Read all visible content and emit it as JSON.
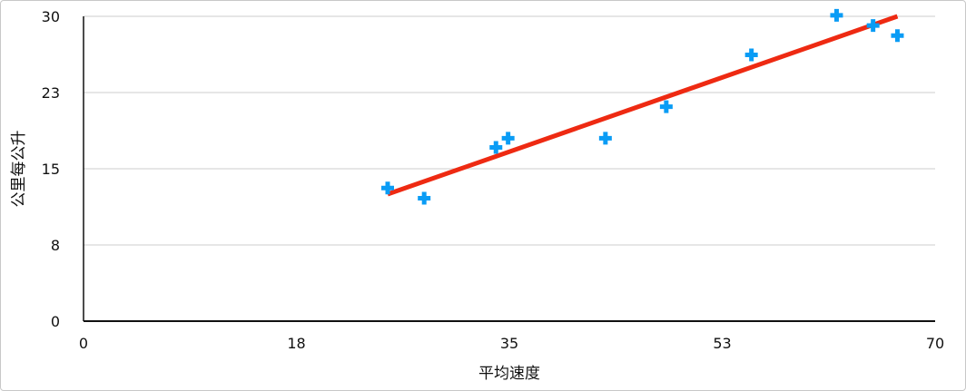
{
  "chart_data": {
    "type": "scatter",
    "title": "",
    "xlabel": "平均速度",
    "ylabel": "公里每公升",
    "xlim": [
      0,
      70
    ],
    "ylim": [
      0,
      30
    ],
    "x_ticks": [
      0,
      17.5,
      35,
      52.5,
      70
    ],
    "x_tick_labels": [
      "0",
      "18",
      "35",
      "53",
      "70"
    ],
    "y_ticks": [
      0,
      7.5,
      15,
      22.5,
      30
    ],
    "y_tick_labels": [
      "0",
      "8",
      "15",
      "23",
      "30"
    ],
    "grid": "horizontal",
    "marker": "plus",
    "colors": {
      "points": "#0a9cf5",
      "trendline": "#ee2a12"
    },
    "series": [
      {
        "points": [
          [
            25.0,
            13.1
          ],
          [
            28.0,
            12.1
          ],
          [
            33.9,
            17.1
          ],
          [
            34.9,
            18.0
          ],
          [
            42.9,
            18.0
          ],
          [
            47.9,
            21.1
          ],
          [
            54.9,
            26.2
          ],
          [
            61.9,
            30.1
          ],
          [
            64.9,
            29.1
          ],
          [
            66.9,
            28.1
          ]
        ]
      }
    ],
    "trendline": {
      "type": "linear",
      "from": [
        25.0,
        12.5
      ],
      "to": [
        66.9,
        30.0
      ]
    }
  }
}
